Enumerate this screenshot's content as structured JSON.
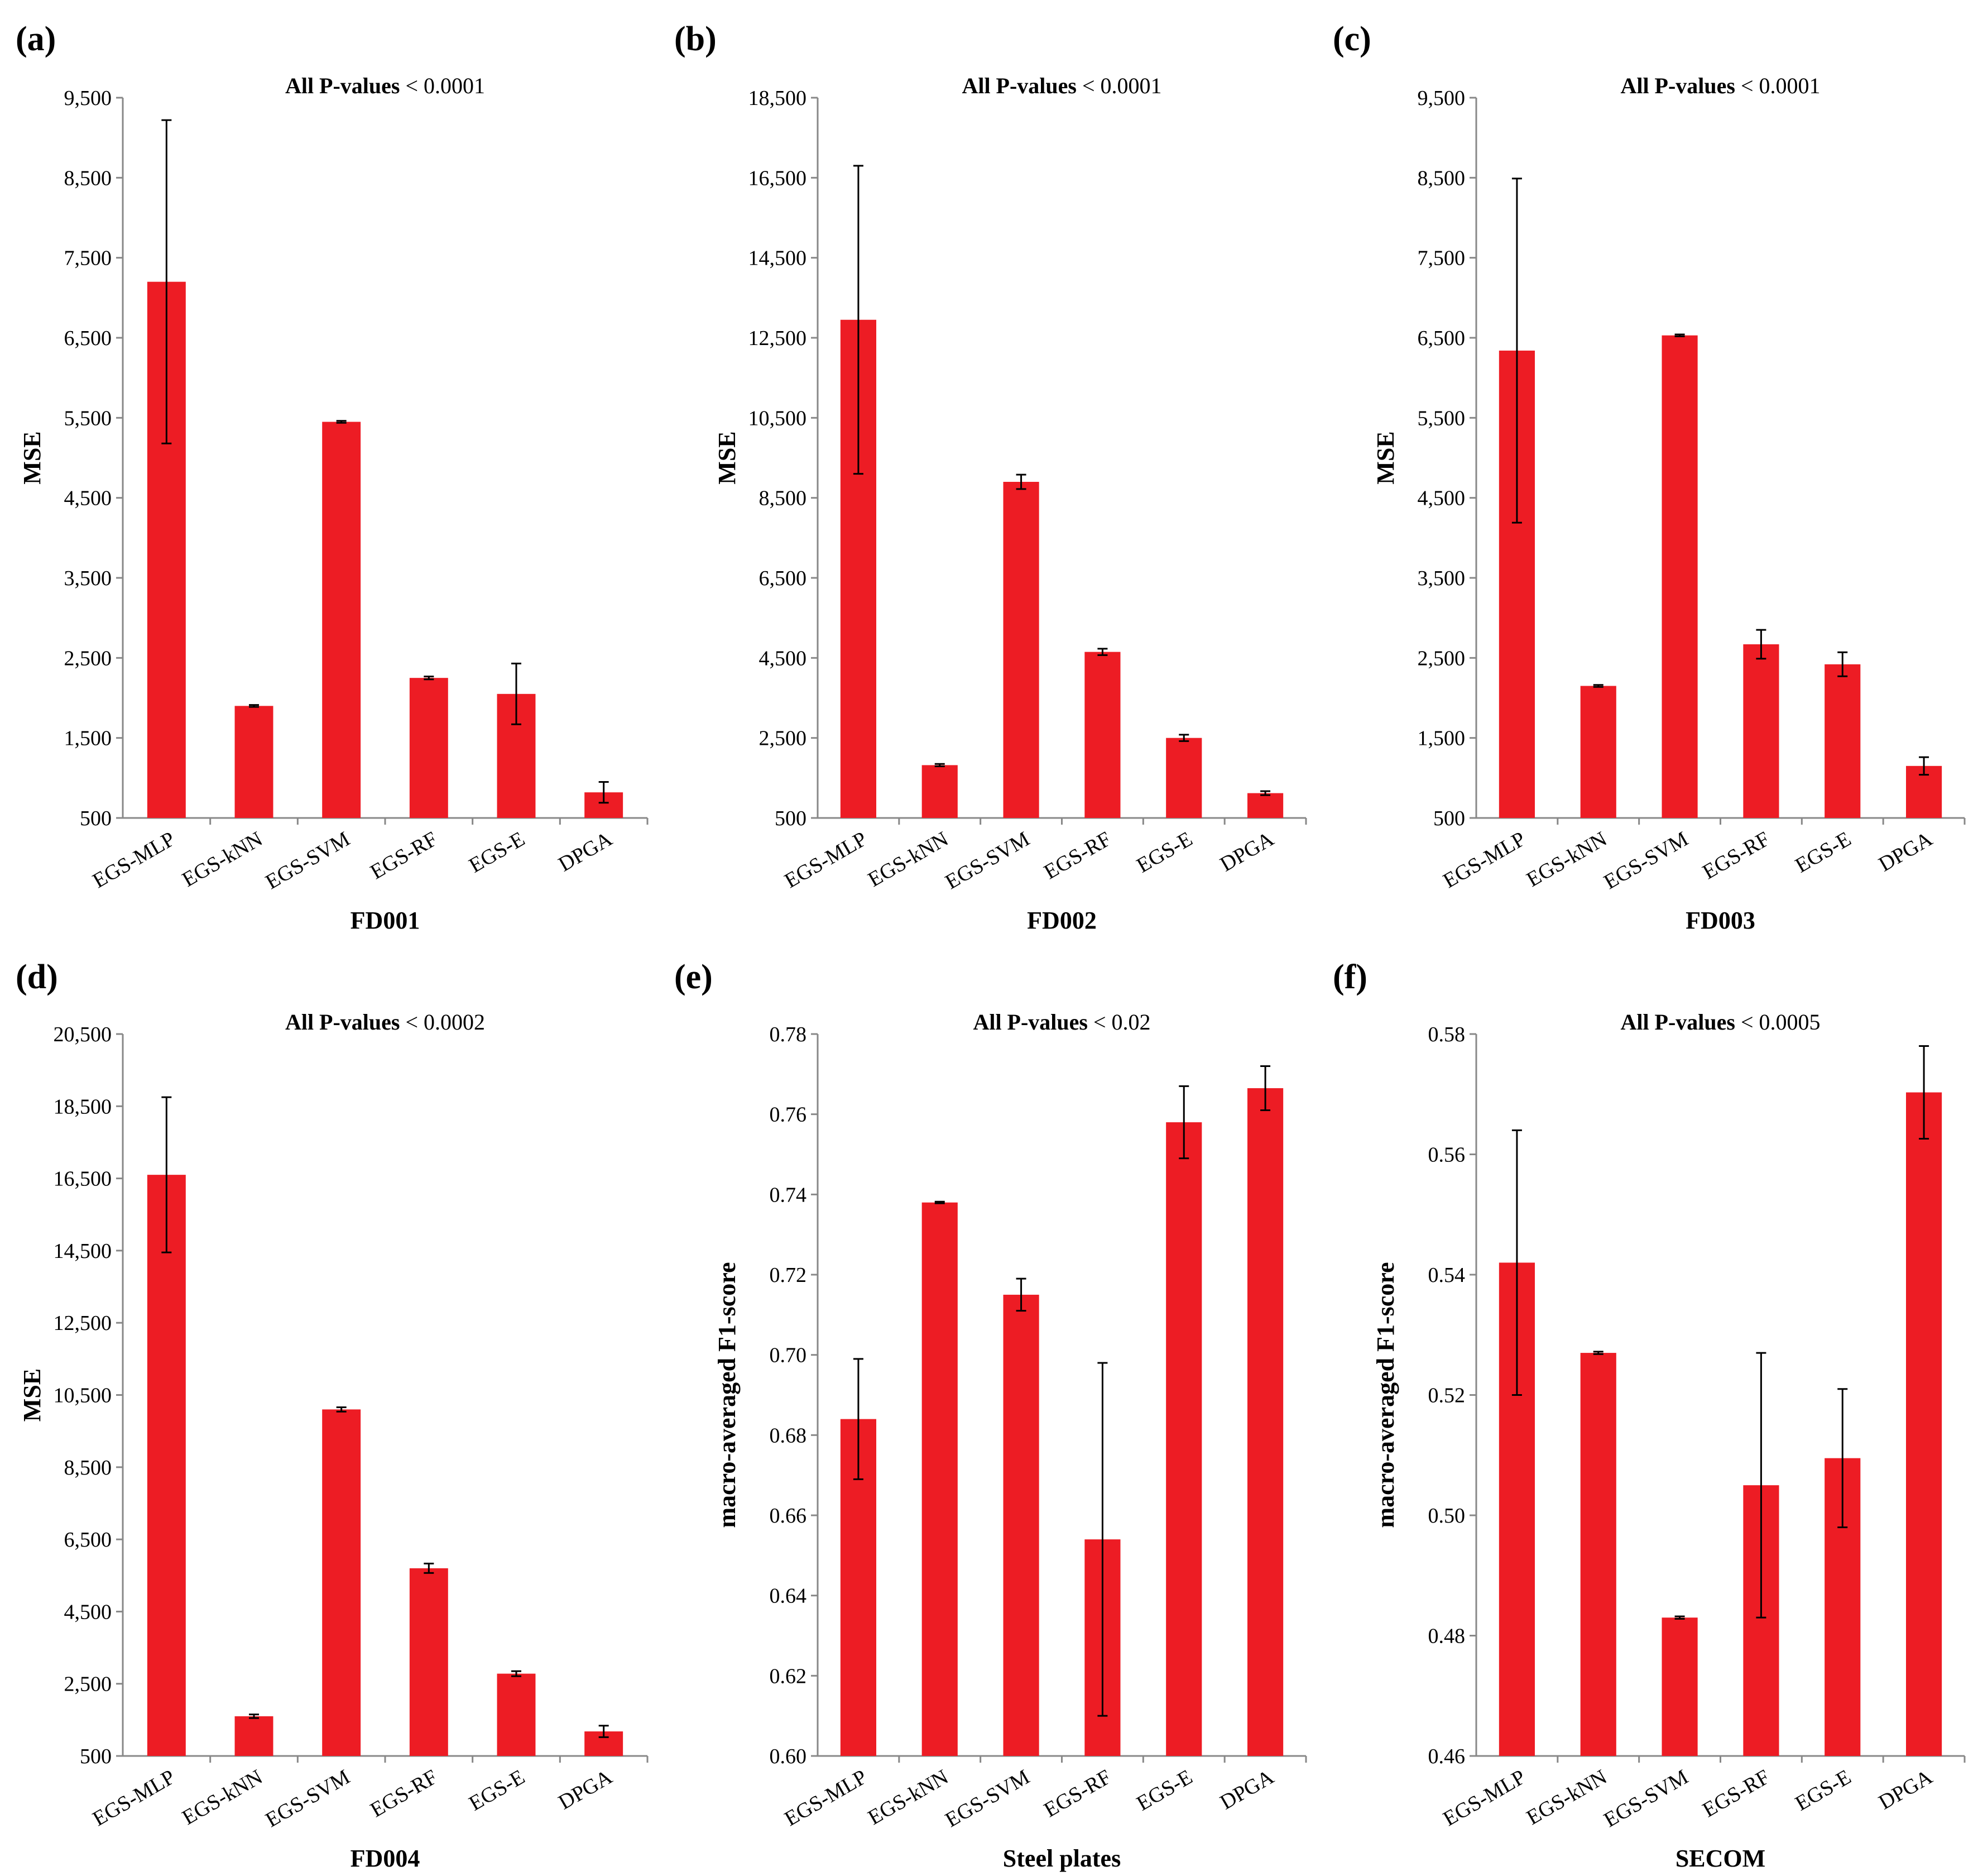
{
  "figure": {
    "bar_color": "#ED1C24",
    "axis_color": "#888888",
    "text_color": "#000000"
  },
  "chart_data": [
    {
      "panel_label": "(a)",
      "type": "bar",
      "title_bold": "All P-values",
      "title_rest": "< 0.0001",
      "xlabel": "FD001",
      "ylabel": "MSE",
      "ylim": [
        500,
        9500
      ],
      "yticks": [
        500,
        1500,
        2500,
        3500,
        4500,
        5500,
        6500,
        7500,
        8500,
        9500
      ],
      "ytick_labels": [
        "500",
        "1,500",
        "2,500",
        "3,500",
        "4,500",
        "5,500",
        "6,500",
        "7,500",
        "8,500",
        "9,500"
      ],
      "categories": [
        "EGS-MLP",
        "EGS-kNN",
        "EGS-SVM",
        "EGS-RF",
        "EGS-E",
        "DPGA"
      ],
      "values": [
        7200,
        1900,
        5450,
        2250,
        2050,
        820
      ],
      "errors": [
        2020,
        12,
        12,
        18,
        380,
        130
      ]
    },
    {
      "panel_label": "(b)",
      "type": "bar",
      "title_bold": "All P-values",
      "title_rest": "< 0.0001",
      "xlabel": "FD002",
      "ylabel": "MSE",
      "ylim": [
        500,
        18500
      ],
      "yticks": [
        500,
        2500,
        4500,
        6500,
        8500,
        10500,
        12500,
        14500,
        16500,
        18500
      ],
      "ytick_labels": [
        "500",
        "2,500",
        "4,500",
        "6,500",
        "8,500",
        "10,500",
        "12,500",
        "14,500",
        "16,500",
        "18,500"
      ],
      "categories": [
        "EGS-MLP",
        "EGS-kNN",
        "EGS-SVM",
        "EGS-RF",
        "EGS-E",
        "DPGA"
      ],
      "values": [
        12950,
        1820,
        8900,
        4650,
        2500,
        1120
      ],
      "errors": [
        3850,
        30,
        180,
        80,
        80,
        50
      ]
    },
    {
      "panel_label": "(c)",
      "type": "bar",
      "title_bold": "All P-values",
      "title_rest": "< 0.0001",
      "xlabel": "FD003",
      "ylabel": "MSE",
      "ylim": [
        500,
        9500
      ],
      "yticks": [
        500,
        1500,
        2500,
        3500,
        4500,
        5500,
        6500,
        7500,
        8500,
        9500
      ],
      "ytick_labels": [
        "500",
        "1,500",
        "2,500",
        "3,500",
        "4,500",
        "5,500",
        "6,500",
        "7,500",
        "8,500",
        "9,500"
      ],
      "categories": [
        "EGS-MLP",
        "EGS-kNN",
        "EGS-SVM",
        "EGS-RF",
        "EGS-E",
        "DPGA"
      ],
      "values": [
        6340,
        2150,
        6530,
        2670,
        2420,
        1150
      ],
      "errors": [
        2150,
        12,
        12,
        180,
        150,
        110
      ]
    },
    {
      "panel_label": "(d)",
      "type": "bar",
      "title_bold": "All P-values",
      "title_rest": "< 0.0002",
      "xlabel": "FD004",
      "ylabel": "MSE",
      "ylim": [
        500,
        20500
      ],
      "yticks": [
        500,
        2500,
        4500,
        6500,
        8500,
        10500,
        12500,
        14500,
        16500,
        18500,
        20500
      ],
      "ytick_labels": [
        "500",
        "2,500",
        "4,500",
        "6,500",
        "8,500",
        "10,500",
        "12,500",
        "14,500",
        "16,500",
        "18,500",
        "20,500"
      ],
      "categories": [
        "EGS-MLP",
        "EGS-kNN",
        "EGS-SVM",
        "EGS-RF",
        "EGS-E",
        "DPGA"
      ],
      "values": [
        16600,
        1600,
        10100,
        5700,
        2780,
        1180
      ],
      "errors": [
        2150,
        50,
        60,
        130,
        70,
        160
      ]
    },
    {
      "panel_label": "(e)",
      "type": "bar",
      "title_bold": "All P-values",
      "title_rest": "< 0.02",
      "xlabel": "Steel plates",
      "ylabel": "macro-averaged F1-score",
      "ylim": [
        0.6,
        0.78
      ],
      "yticks": [
        0.6,
        0.62,
        0.64,
        0.66,
        0.68,
        0.7,
        0.72,
        0.74,
        0.76,
        0.78
      ],
      "ytick_labels": [
        "0.60",
        "0.62",
        "0.64",
        "0.66",
        "0.68",
        "0.70",
        "0.72",
        "0.74",
        "0.76",
        "0.78"
      ],
      "categories": [
        "EGS-MLP",
        "EGS-kNN",
        "EGS-SVM",
        "EGS-RF",
        "EGS-E",
        "DPGA"
      ],
      "values": [
        0.684,
        0.738,
        0.715,
        0.654,
        0.758,
        0.7665
      ],
      "errors": [
        0.015,
        0.0002,
        0.004,
        0.044,
        0.009,
        0.0055
      ]
    },
    {
      "panel_label": "(f)",
      "type": "bar",
      "title_bold": "All P-values",
      "title_rest": "< 0.0005",
      "xlabel": "SECOM",
      "ylabel": "macro-averaged F1-score",
      "ylim": [
        0.46,
        0.58
      ],
      "yticks": [
        0.46,
        0.48,
        0.5,
        0.52,
        0.54,
        0.56,
        0.58
      ],
      "ytick_labels": [
        "0.46",
        "0.48",
        "0.50",
        "0.52",
        "0.54",
        "0.56",
        "0.58"
      ],
      "categories": [
        "EGS-MLP",
        "EGS-kNN",
        "EGS-SVM",
        "EGS-RF",
        "EGS-E",
        "DPGA"
      ],
      "values": [
        0.542,
        0.527,
        0.483,
        0.505,
        0.5095,
        0.5703
      ],
      "errors": [
        0.022,
        0.0002,
        0.0002,
        0.022,
        0.0115,
        0.0077
      ]
    }
  ]
}
